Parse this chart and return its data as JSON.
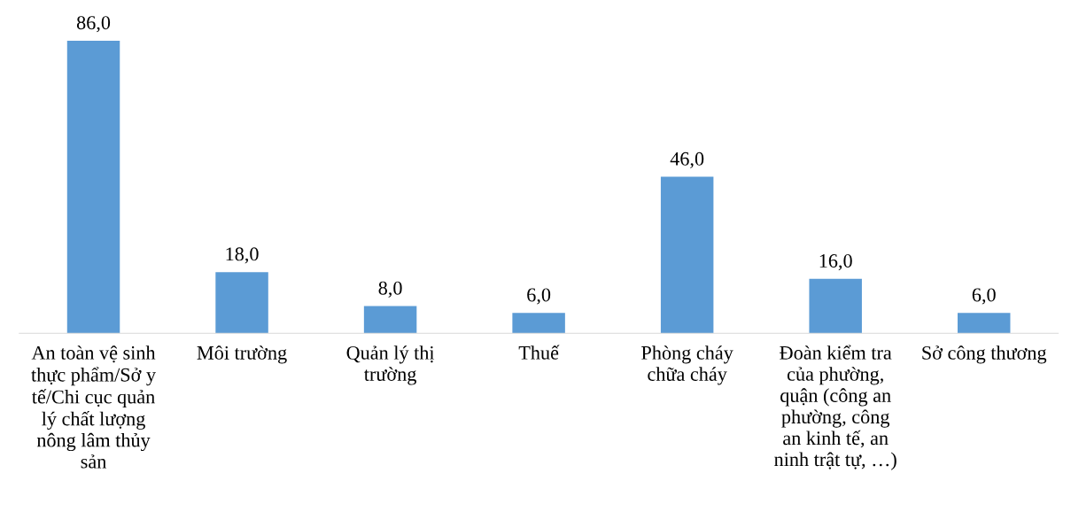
{
  "chart_data": {
    "type": "bar",
    "categories": [
      "An toàn vệ sinh\nthực phẩm/Sở y\ntế/Chi cục quản\nlý chất lượng\nnông lâm thủy\nsản",
      "Môi trường",
      "Quản lý thị\ntrường",
      "Thuế",
      "Phòng cháy\nchữa cháy",
      "Đoàn kiểm tra\ncủa phường,\nquận (công an\nphường, công\nan kinh tế, an\nninh trật tự, …)",
      "Sở công thương"
    ],
    "values": [
      86.0,
      18.0,
      8.0,
      6.0,
      46.0,
      16.0,
      6.0
    ],
    "value_labels": [
      "86,0",
      "18,0",
      "8,0",
      "6,0",
      "46,0",
      "16,0",
      "6,0"
    ],
    "color": "#5b9bd5",
    "grid": false,
    "legend": false
  }
}
